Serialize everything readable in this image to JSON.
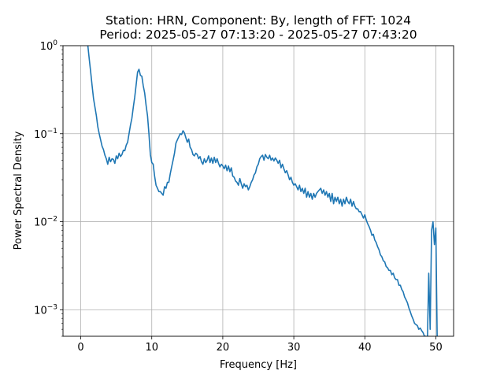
{
  "chart_data": {
    "type": "line",
    "title": [
      "Station: HRN, Component: By, length of FFT: 1024",
      "Period: 2025-05-27 07:13:20 - 2025-05-27 07:43:20"
    ],
    "xlabel": "Frequency [Hz]",
    "ylabel": "Power Spectral Density",
    "xlim": [
      -2.5,
      52.5
    ],
    "ylim": [
      0.0005,
      1
    ],
    "yscale": "log",
    "grid": true,
    "series_color": "#1f77b4",
    "xticks": [
      0,
      10,
      20,
      30,
      40,
      50
    ],
    "xtick_labels": [
      "0",
      "10",
      "20",
      "30",
      "40",
      "50"
    ],
    "yticks": [
      0.001,
      0.01,
      0.1,
      1
    ],
    "ytick_labels": [
      {
        "base": "10",
        "exp": "−3"
      },
      {
        "base": "10",
        "exp": "−2"
      },
      {
        "base": "10",
        "exp": "−1"
      },
      {
        "base": "10",
        "exp": "0"
      }
    ],
    "series": [
      {
        "x": [
          1.0,
          1.2,
          1.4,
          1.6,
          1.8,
          2.0,
          2.2,
          2.4,
          2.6,
          2.8,
          3.0,
          3.2,
          3.4,
          3.6,
          3.8,
          4.0,
          4.2,
          4.4,
          4.6,
          4.8,
          5.0,
          5.2,
          5.4,
          5.6,
          5.8,
          6.0,
          6.2,
          6.4,
          6.6,
          6.8,
          7.0,
          7.2,
          7.4,
          7.6,
          7.8,
          8.0,
          8.2,
          8.4,
          8.6,
          8.8,
          9.0,
          9.2,
          9.4,
          9.6,
          9.8,
          10.0,
          10.2,
          10.4,
          10.6,
          10.8,
          11.0,
          11.2,
          11.4,
          11.6,
          11.8,
          12.0,
          12.2,
          12.4,
          12.6,
          12.8,
          13.0,
          13.2,
          13.4,
          13.6,
          13.8,
          14.0,
          14.2,
          14.4,
          14.6,
          14.8,
          15.0,
          15.2,
          15.4,
          15.6,
          15.8,
          16.0,
          16.2,
          16.4,
          16.6,
          16.8,
          17.0,
          17.2,
          17.4,
          17.6,
          17.8,
          18.0,
          18.2,
          18.4,
          18.6,
          18.8,
          19.0,
          19.2,
          19.4,
          19.6,
          19.8,
          20.0,
          20.2,
          20.4,
          20.6,
          20.8,
          21.0,
          21.2,
          21.4,
          21.6,
          21.8,
          22.0,
          22.2,
          22.4,
          22.6,
          22.8,
          23.0,
          23.2,
          23.4,
          23.6,
          23.8,
          24.0,
          24.2,
          24.4,
          24.6,
          24.8,
          25.0,
          25.2,
          25.4,
          25.6,
          25.8,
          26.0,
          26.2,
          26.4,
          26.6,
          26.8,
          27.0,
          27.2,
          27.4,
          27.6,
          27.8,
          28.0,
          28.2,
          28.4,
          28.6,
          28.8,
          29.0,
          29.2,
          29.4,
          29.6,
          29.8,
          30.0,
          30.2,
          30.4,
          30.6,
          30.8,
          31.0,
          31.2,
          31.4,
          31.6,
          31.8,
          32.0,
          32.2,
          32.4,
          32.6,
          32.8,
          33.0,
          33.2,
          33.4,
          33.6,
          33.8,
          34.0,
          34.2,
          34.4,
          34.6,
          34.8,
          35.0,
          35.2,
          35.4,
          35.6,
          35.8,
          36.0,
          36.2,
          36.4,
          36.6,
          36.8,
          37.0,
          37.2,
          37.4,
          37.6,
          37.8,
          38.0,
          38.2,
          38.4,
          38.6,
          38.8,
          39.0,
          39.2,
          39.4,
          39.6,
          39.8,
          40.0,
          40.2,
          40.4,
          40.6,
          40.8,
          41.0,
          41.2,
          41.4,
          41.6,
          41.8,
          42.0,
          42.2,
          42.4,
          42.6,
          42.8,
          43.0,
          43.2,
          43.4,
          43.6,
          43.8,
          44.0,
          44.2,
          44.4,
          44.6,
          44.8,
          45.0,
          45.2,
          45.4,
          45.6,
          45.8,
          46.0,
          46.2,
          46.4,
          46.6,
          46.8,
          47.0,
          47.2,
          47.4,
          47.6,
          47.8,
          48.0,
          48.2,
          48.4,
          48.6,
          48.8,
          49.0,
          49.2,
          49.4,
          49.6,
          49.8,
          50.0,
          50.2
        ],
        "y": [
          1.0,
          0.7,
          0.5,
          0.35,
          0.25,
          0.2,
          0.16,
          0.12,
          0.1,
          0.085,
          0.072,
          0.066,
          0.057,
          0.052,
          0.045,
          0.054,
          0.048,
          0.052,
          0.051,
          0.046,
          0.056,
          0.052,
          0.06,
          0.055,
          0.058,
          0.065,
          0.064,
          0.074,
          0.08,
          0.1,
          0.125,
          0.15,
          0.2,
          0.26,
          0.36,
          0.5,
          0.54,
          0.46,
          0.45,
          0.35,
          0.29,
          0.21,
          0.16,
          0.1,
          0.058,
          0.047,
          0.045,
          0.033,
          0.026,
          0.024,
          0.022,
          0.022,
          0.021,
          0.02,
          0.025,
          0.024,
          0.028,
          0.028,
          0.035,
          0.042,
          0.05,
          0.06,
          0.078,
          0.085,
          0.092,
          0.1,
          0.098,
          0.108,
          0.102,
          0.09,
          0.08,
          0.087,
          0.07,
          0.066,
          0.058,
          0.056,
          0.06,
          0.058,
          0.052,
          0.055,
          0.048,
          0.045,
          0.052,
          0.047,
          0.05,
          0.056,
          0.047,
          0.053,
          0.046,
          0.054,
          0.047,
          0.052,
          0.046,
          0.042,
          0.045,
          0.043,
          0.04,
          0.044,
          0.038,
          0.043,
          0.037,
          0.041,
          0.033,
          0.032,
          0.029,
          0.028,
          0.026,
          0.031,
          0.027,
          0.024,
          0.027,
          0.025,
          0.026,
          0.023,
          0.025,
          0.028,
          0.03,
          0.034,
          0.036,
          0.042,
          0.045,
          0.052,
          0.055,
          0.057,
          0.05,
          0.058,
          0.054,
          0.052,
          0.057,
          0.05,
          0.053,
          0.049,
          0.053,
          0.05,
          0.046,
          0.05,
          0.041,
          0.045,
          0.04,
          0.036,
          0.038,
          0.034,
          0.03,
          0.032,
          0.028,
          0.026,
          0.027,
          0.025,
          0.023,
          0.026,
          0.022,
          0.024,
          0.021,
          0.024,
          0.019,
          0.022,
          0.019,
          0.021,
          0.018,
          0.021,
          0.019,
          0.021,
          0.022,
          0.023,
          0.024,
          0.021,
          0.023,
          0.02,
          0.022,
          0.019,
          0.021,
          0.017,
          0.021,
          0.016,
          0.019,
          0.017,
          0.019,
          0.016,
          0.018,
          0.015,
          0.018,
          0.016,
          0.019,
          0.017,
          0.016,
          0.018,
          0.015,
          0.017,
          0.015,
          0.014,
          0.014,
          0.013,
          0.013,
          0.012,
          0.011,
          0.012,
          0.0105,
          0.0095,
          0.0088,
          0.008,
          0.007,
          0.0072,
          0.0062,
          0.0058,
          0.0052,
          0.0048,
          0.0042,
          0.004,
          0.0036,
          0.0035,
          0.0031,
          0.003,
          0.0028,
          0.0028,
          0.0025,
          0.0026,
          0.0023,
          0.0022,
          0.0022,
          0.0019,
          0.0019,
          0.0017,
          0.0016,
          0.0014,
          0.0013,
          0.0012,
          0.00105,
          0.00095,
          0.00085,
          0.00078,
          0.0007,
          0.00068,
          0.00066,
          0.0006,
          0.00062,
          0.00058,
          0.00055,
          0.0005,
          0.0005,
          0.0004,
          0.0026,
          0.0006,
          0.008,
          0.01,
          0.0055,
          0.0085,
          0.0004
        ]
      }
    ]
  }
}
